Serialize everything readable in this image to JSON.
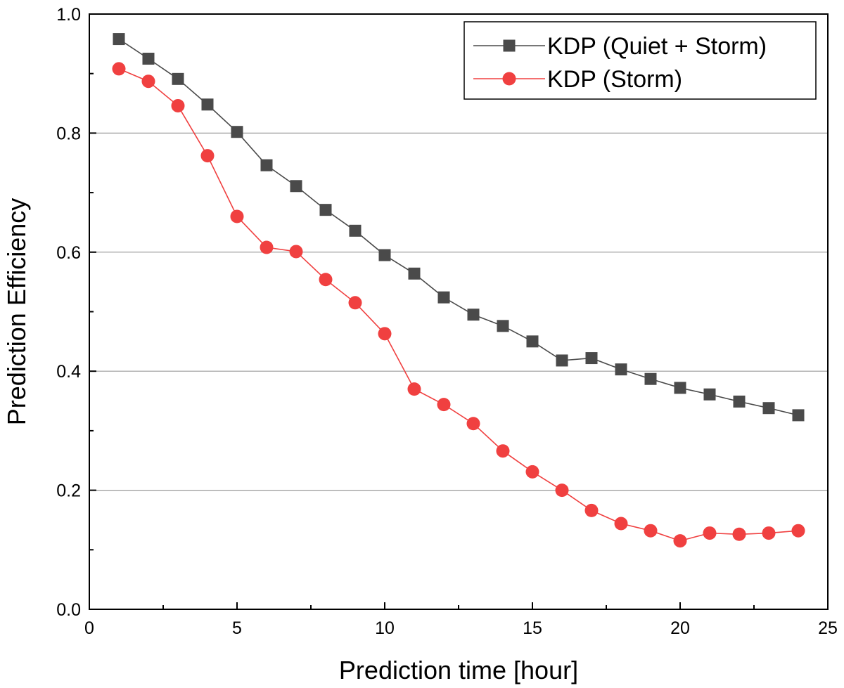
{
  "chart_data": {
    "type": "line",
    "title": "",
    "xlabel": "Prediction time [hour]",
    "ylabel": "Prediction Efficiency",
    "xlim": [
      0,
      25
    ],
    "ylim": [
      0.0,
      1.0
    ],
    "x_ticks": [
      0,
      5,
      10,
      15,
      20,
      25
    ],
    "x_tick_labels": [
      "0",
      "5",
      "10",
      "15",
      "20",
      "25"
    ],
    "y_ticks": [
      0.0,
      0.2,
      0.4,
      0.6,
      0.8,
      1.0
    ],
    "y_tick_labels": [
      "0.0",
      "0.2",
      "0.4",
      "0.6",
      "0.8",
      "1.0"
    ],
    "grid": "horizontal",
    "legend_position": "top-right",
    "x": [
      1,
      2,
      3,
      4,
      5,
      6,
      7,
      8,
      9,
      10,
      11,
      12,
      13,
      14,
      15,
      16,
      17,
      18,
      19,
      20,
      21,
      22,
      23,
      24
    ],
    "series": [
      {
        "name": "KDP (Quiet + Storm)",
        "marker": "square",
        "color": "#4a4a4a",
        "values": [
          0.958,
          0.925,
          0.891,
          0.848,
          0.802,
          0.746,
          0.711,
          0.671,
          0.636,
          0.595,
          0.564,
          0.524,
          0.495,
          0.476,
          0.45,
          0.418,
          0.422,
          0.403,
          0.387,
          0.372,
          0.361,
          0.349,
          0.338,
          0.326
        ]
      },
      {
        "name": "KDP (Storm)",
        "marker": "circle",
        "color": "#f04040",
        "values": [
          0.908,
          0.887,
          0.846,
          0.762,
          0.66,
          0.608,
          0.601,
          0.554,
          0.515,
          0.463,
          0.37,
          0.344,
          0.312,
          0.266,
          0.231,
          0.2,
          0.166,
          0.144,
          0.132,
          0.115,
          0.128,
          0.126,
          0.128,
          0.132
        ]
      }
    ]
  }
}
